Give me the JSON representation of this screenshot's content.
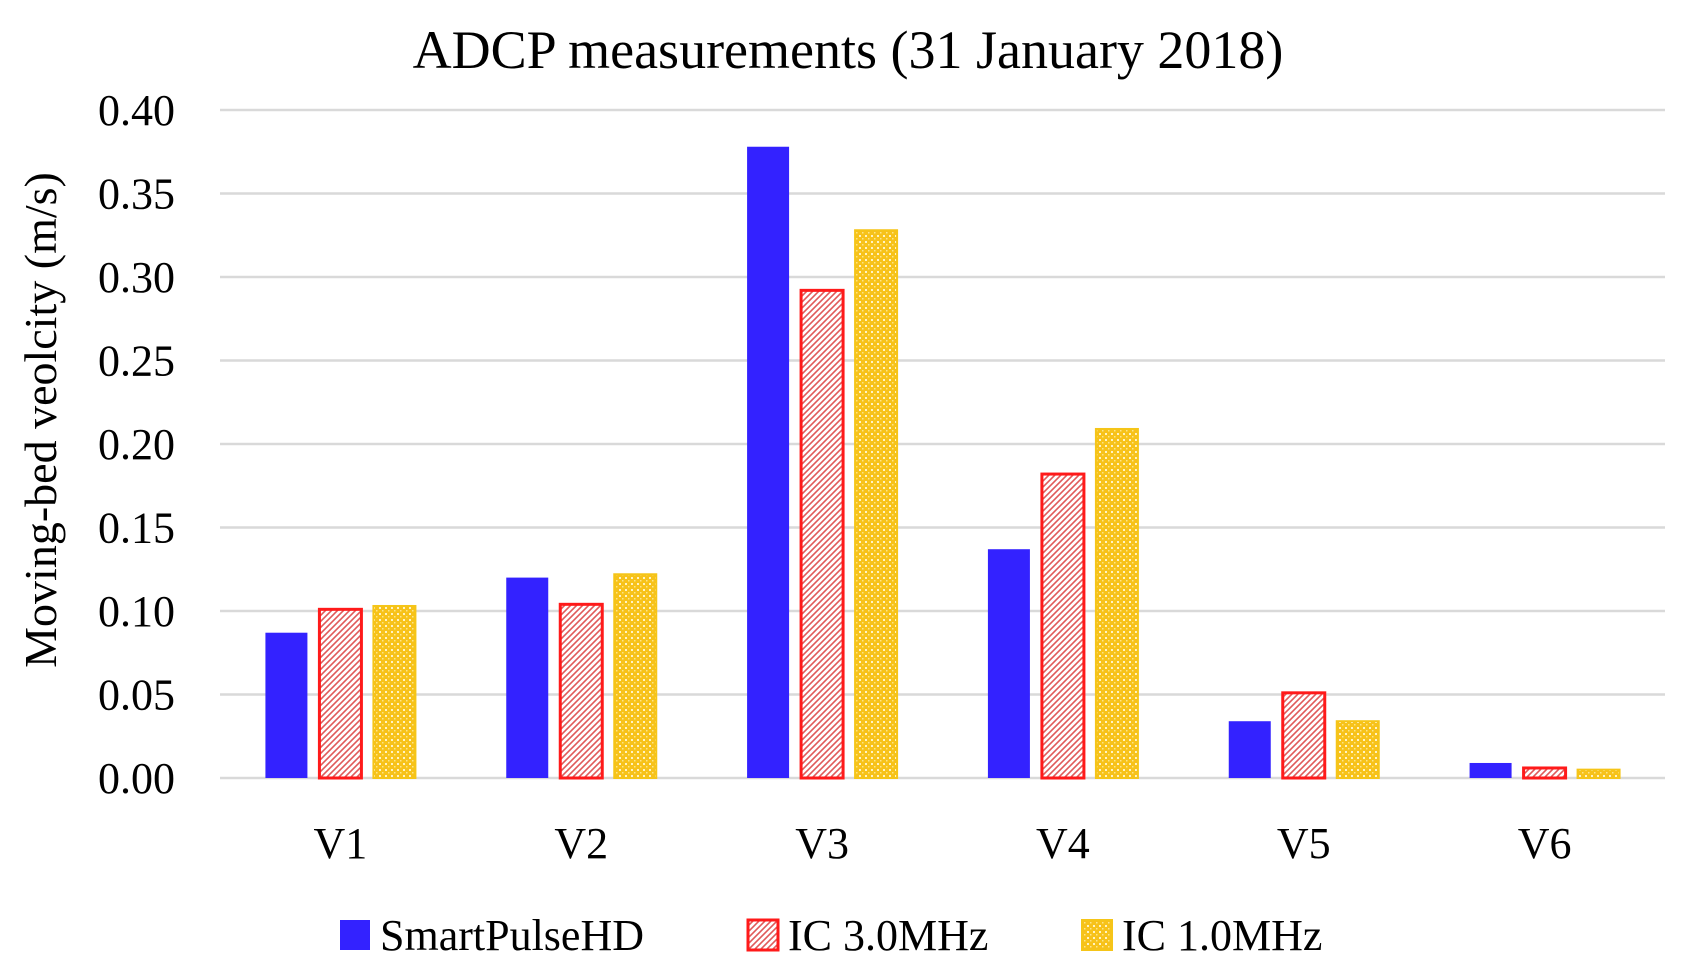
{
  "chart_data": {
    "type": "bar",
    "title": "ADCP measurements (31 January 2018)",
    "xlabel": "",
    "ylabel": "Moving-bed veolcity (m/s)",
    "ylim": [
      0,
      0.4
    ],
    "yticks": [
      "0.00",
      "0.05",
      "0.10",
      "0.15",
      "0.20",
      "0.25",
      "0.30",
      "0.35",
      "0.40"
    ],
    "grid": true,
    "legend_position": "bottom",
    "categories": [
      "V1",
      "V2",
      "V3",
      "V4",
      "V5",
      "V6"
    ],
    "series": [
      {
        "name": "SmartPulseHD",
        "values": [
          0.087,
          0.12,
          0.378,
          0.137,
          0.034,
          0.009
        ],
        "color": "#3322ff",
        "pattern": "solid"
      },
      {
        "name": "IC 3.0MHz",
        "values": [
          0.101,
          0.104,
          0.292,
          0.182,
          0.051,
          0.006
        ],
        "color": "#ff1a1a",
        "pattern": "diagonal"
      },
      {
        "name": "IC 1.0MHz",
        "values": [
          0.103,
          0.122,
          0.328,
          0.209,
          0.034,
          0.005
        ],
        "color": "#f5b800",
        "pattern": "dots"
      }
    ]
  }
}
